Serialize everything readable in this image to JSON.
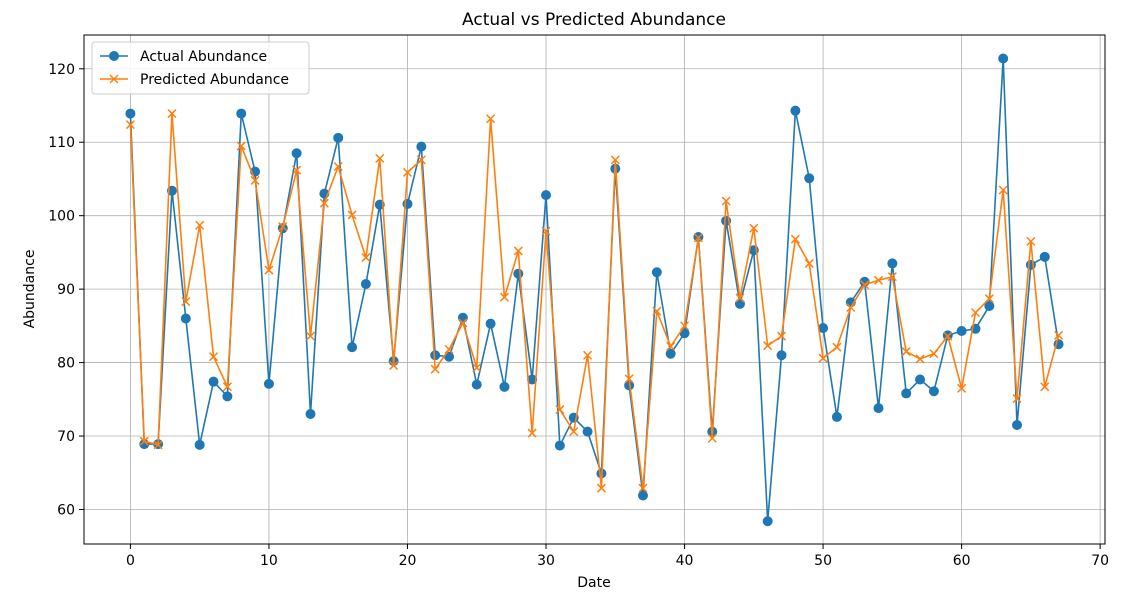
{
  "chart_data": {
    "type": "line",
    "title": "Actual vs Predicted Abundance",
    "xlabel": "Date",
    "ylabel": "Abundance",
    "xlim": [
      -3.35,
      70.35
    ],
    "ylim": [
      55.3,
      124.6
    ],
    "xticks": [
      0,
      10,
      20,
      30,
      40,
      50,
      60,
      70
    ],
    "yticks": [
      60,
      70,
      80,
      90,
      100,
      110,
      120
    ],
    "grid": true,
    "legend_position": "upper-left",
    "x": [
      0,
      1,
      2,
      3,
      4,
      5,
      6,
      7,
      8,
      9,
      10,
      11,
      12,
      13,
      14,
      15,
      16,
      17,
      18,
      19,
      20,
      21,
      22,
      23,
      24,
      25,
      26,
      27,
      28,
      29,
      30,
      31,
      32,
      33,
      34,
      35,
      36,
      37,
      38,
      39,
      40,
      41,
      42,
      43,
      44,
      45,
      46,
      47,
      48,
      49,
      50,
      51,
      52,
      53,
      54,
      55,
      56,
      57,
      58,
      59,
      60,
      61,
      62,
      63,
      64,
      65,
      66,
      67
    ],
    "series": [
      {
        "name": "Actual Abundance",
        "color": "#1f77b4",
        "marker": "circle",
        "values": [
          113.9,
          68.9,
          68.9,
          103.4,
          86.0,
          68.8,
          77.4,
          75.4,
          113.9,
          106.0,
          77.1,
          98.3,
          108.5,
          73.0,
          103.0,
          110.6,
          82.1,
          90.7,
          101.5,
          80.2,
          101.6,
          109.4,
          81.0,
          80.8,
          86.1,
          77.0,
          85.3,
          76.7,
          92.1,
          77.7,
          102.8,
          68.7,
          72.5,
          70.6,
          64.9,
          106.4,
          76.9,
          61.9,
          92.3,
          81.2,
          84.0,
          97.1,
          70.6,
          99.3,
          88.0,
          95.3,
          58.4,
          81.0,
          114.3,
          105.1,
          84.7,
          72.6,
          88.2,
          91.0,
          73.8,
          93.5,
          75.8,
          77.7,
          76.1,
          83.7,
          84.3,
          84.6,
          87.7,
          121.4,
          71.5,
          93.3,
          94.4,
          82.5
        ]
      },
      {
        "name": "Predicted Abundance",
        "color": "#ff7f0e",
        "marker": "x",
        "values": [
          112.4,
          69.3,
          68.8,
          113.9,
          88.3,
          98.7,
          80.8,
          76.7,
          109.5,
          104.8,
          92.6,
          98.5,
          106.2,
          83.6,
          101.7,
          106.7,
          100.1,
          94.3,
          107.8,
          79.6,
          105.9,
          107.6,
          79.1,
          81.8,
          85.4,
          79.3,
          113.2,
          88.9,
          95.2,
          70.4,
          97.9,
          73.6,
          70.6,
          81.0,
          62.9,
          107.6,
          77.8,
          62.9,
          87.0,
          82.2,
          85.0,
          97.0,
          69.7,
          102.0,
          88.8,
          98.3,
          82.3,
          83.6,
          96.8,
          93.5,
          80.6,
          82.1,
          87.5,
          90.6,
          91.2,
          91.7,
          81.5,
          80.5,
          81.2,
          83.6,
          76.5,
          86.8,
          88.7,
          103.5,
          75.1,
          96.5,
          76.7,
          83.7
        ]
      }
    ]
  }
}
